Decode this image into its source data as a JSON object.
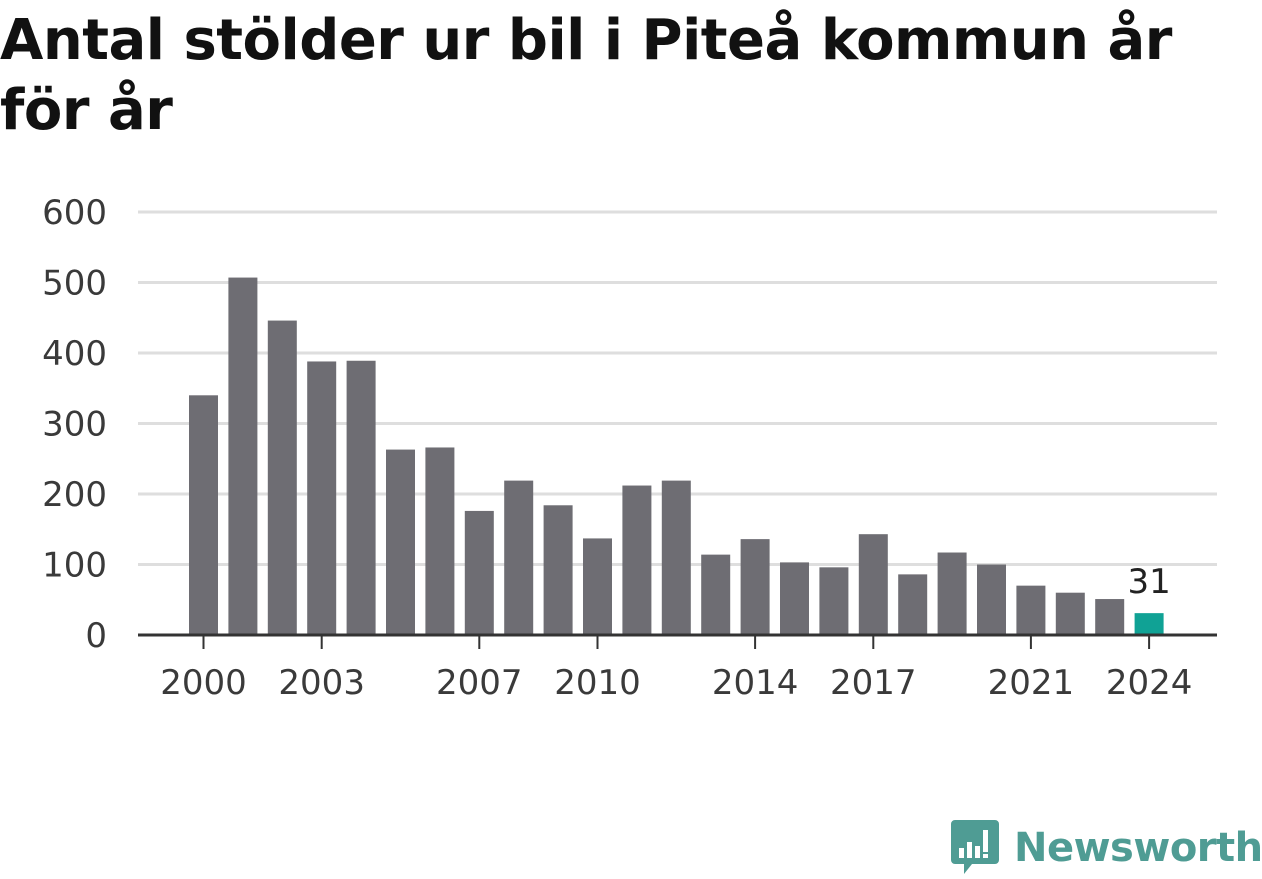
{
  "title": "Antal stölder ur bil i Piteå kommun år för år",
  "brand": {
    "name": "Newsworthy",
    "icon": "newsworthy-logo-icon",
    "color": "#4f9c94"
  },
  "colors": {
    "bar": "#6e6d73",
    "highlight": "#10a295",
    "grid": "#dedede",
    "axis": "#333333"
  },
  "chart_data": {
    "type": "bar",
    "categories": [
      "2000",
      "2001",
      "2002",
      "2003",
      "2004",
      "2005",
      "2006",
      "2007",
      "2008",
      "2009",
      "2010",
      "2011",
      "2012",
      "2013",
      "2014",
      "2015",
      "2016",
      "2017",
      "2018",
      "2019",
      "2020",
      "2021",
      "2022",
      "2023",
      "2024"
    ],
    "values": [
      340,
      507,
      446,
      388,
      389,
      263,
      266,
      176,
      219,
      184,
      137,
      212,
      219,
      114,
      136,
      103,
      96,
      143,
      86,
      117,
      100,
      70,
      60,
      51,
      31
    ],
    "x_tick_labels": [
      "2000",
      "2003",
      "2007",
      "2010",
      "2014",
      "2017",
      "2021",
      "2024"
    ],
    "y_ticks": [
      0,
      100,
      200,
      300,
      400,
      500,
      600
    ],
    "ylim": [
      0,
      600
    ],
    "highlight": {
      "category": "2024",
      "label": "31"
    },
    "grid": true,
    "xlabel": "",
    "ylabel": ""
  }
}
